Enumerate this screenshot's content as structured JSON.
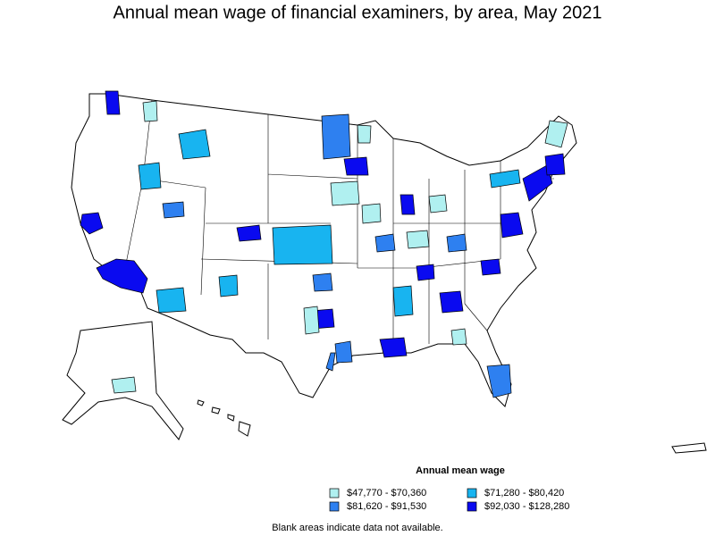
{
  "title": "Annual mean wage of financial examiners, by area, May 2021",
  "legend": {
    "title": "Annual mean wage",
    "items": [
      {
        "label": "$47,770 - $70,360",
        "color": "#b0f0f0"
      },
      {
        "label": "$71,280 - $80,420",
        "color": "#18b4f0"
      },
      {
        "label": "$81,620 - $91,530",
        "color": "#2e80f0"
      },
      {
        "label": "$92,030 - $128,280",
        "color": "#0a0af0"
      }
    ]
  },
  "note": "Blank areas indicate data not available."
}
